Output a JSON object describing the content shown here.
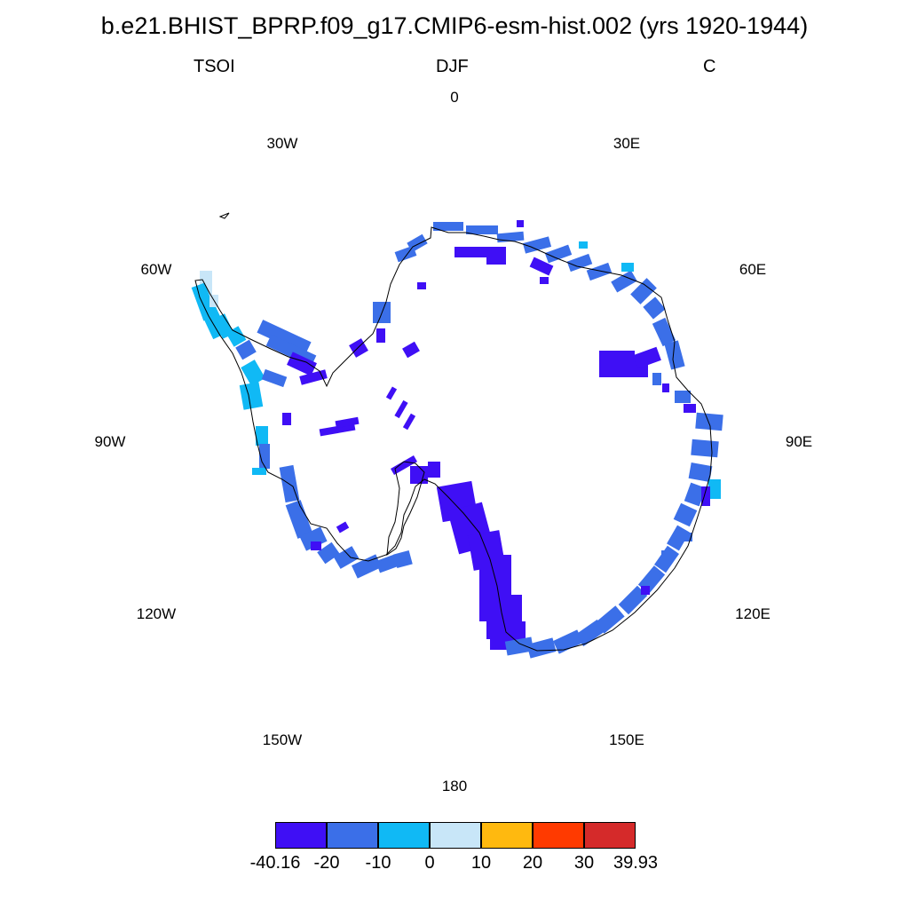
{
  "title": "b.e21.BHIST_BPRP.f09_g17.CMIP6-esm-hist.002 (yrs 1920-1944)",
  "subtitles": {
    "variable": "TSOI",
    "season": "DJF",
    "units": "C"
  },
  "lon_labels": [
    "0",
    "30E",
    "60E",
    "90E",
    "120E",
    "150E",
    "180",
    "150W",
    "120W",
    "90W",
    "60W",
    "30W"
  ],
  "colorbar": {
    "colors": [
      "#3f0ff5",
      "#3b6fe8",
      "#10b9f5",
      "#c8e6f8",
      "#ffb90f",
      "#ff3a00",
      "#d52a2a"
    ],
    "labels": [
      "-40.16",
      "-20",
      "-10",
      "0",
      "10",
      "20",
      "30",
      "39.93"
    ]
  },
  "palette": {
    "strong_cold": "#3f0ff5",
    "cold": "#3b6fe8",
    "mild_cold": "#10b9f5",
    "near_zero": "#c8e6f8"
  }
}
